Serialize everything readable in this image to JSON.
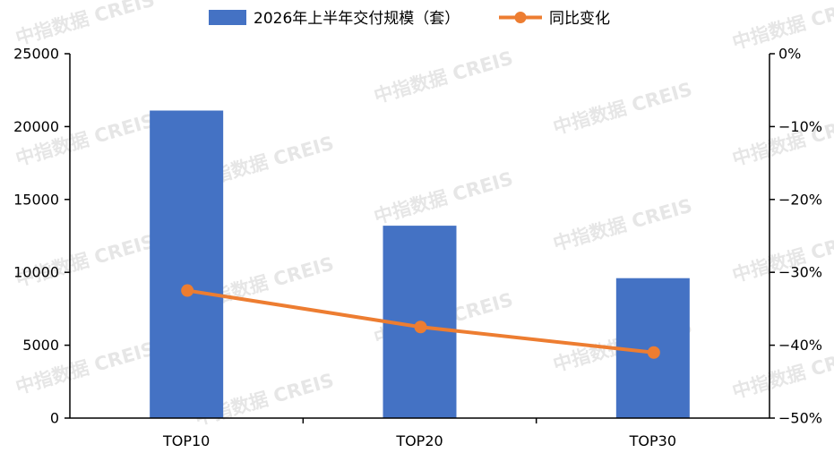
{
  "chart_data": {
    "type": "bar",
    "categories": [
      "TOP10",
      "TOP20",
      "TOP30"
    ],
    "series": [
      {
        "name": "2026年上半年交付规模（套）",
        "kind": "bar",
        "axis": "left",
        "values": [
          21100,
          13200,
          9600
        ],
        "color": "#4472C4"
      },
      {
        "name": "同比变化",
        "kind": "line",
        "axis": "right",
        "values": [
          -32.5,
          -37.5,
          -41.0
        ],
        "color": "#ED7D31"
      }
    ],
    "y_left": {
      "ylim": [
        0,
        25000
      ],
      "ticks": [
        "0",
        "5000",
        "10000",
        "15000",
        "20000",
        "25000"
      ]
    },
    "y_right": {
      "ylim": [
        -50,
        0
      ],
      "ticks": [
        "-50%",
        "-40%",
        "-30%",
        "-20%",
        "-10%",
        "0%"
      ]
    },
    "legend_position": "top",
    "grid": false,
    "watermark": "中指数据 CREIS"
  }
}
